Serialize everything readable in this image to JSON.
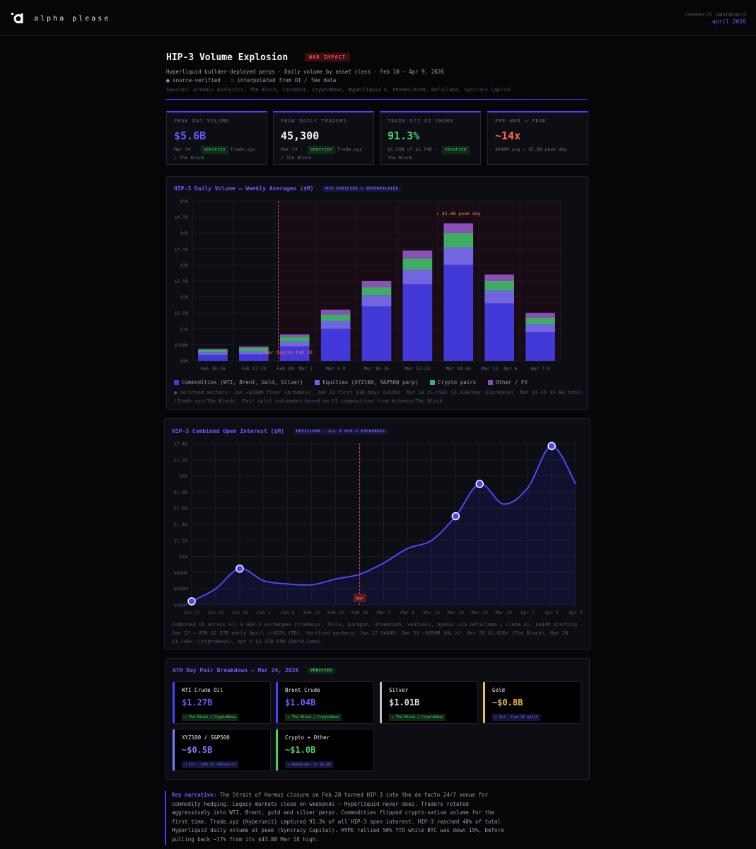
{
  "brand": {
    "name": "alpha please"
  },
  "top_right": {
    "line1": "research dashboard",
    "line2": "april 2026"
  },
  "header": {
    "title": "HIP-3 Volume Explosion",
    "badge": "WAR IMPACT",
    "subtitle": "Hyperliquid builder-deployed perps · Daily volume by asset class · Feb 10 – Apr 9, 2026",
    "legend_verified": "source-verified",
    "legend_interp": "interpolated from OI / fee data",
    "sources": "Sources: Artemis Analytics, The Block, CoinDesk, CryptoNews, Hyperliquid X, Phemex/ASXN, DefiLlama, Syncracy Capital"
  },
  "stats": [
    {
      "label": "PEAK DAY VOLUME",
      "value": "$5.6B",
      "color": "#6a5cff",
      "note_pre": "Mar 24 · ",
      "pill": "VERIFIED",
      "note_post": "Trade.xyz / The Block"
    },
    {
      "label": "PEAK DAILY TRADERS",
      "value": "45,300",
      "color": "#f0f0f5",
      "note_pre": "Mar 24 · ",
      "pill": "VERIFIED",
      "note_post": "Trade.xyz / The Block"
    },
    {
      "label": "TRADE.XYZ OI SHARE",
      "value": "91.3%",
      "color": "#4ad06a",
      "note_pre": "$1.58B of $1.74B · ",
      "pill": "VERIFIED",
      "note_post": "The Block"
    },
    {
      "label": "PRE-WAR → PEAK",
      "value": "~14x",
      "color": "#ff6a4a",
      "note_pre": "$400M avg → $5.6B peak day",
      "pill": "",
      "note_post": ""
    }
  ],
  "bar_panel": {
    "title": "HIP-3 Daily Volume — Weekly Averages ($M)",
    "tag": "MIX VERIFIED + INTERPOLATED",
    "legend": [
      "Commodities (WTI, Brent, Gold, Silver)",
      "Equities (XYZ100, S&P500 perp)",
      "Crypto pairs",
      "Other / FX"
    ],
    "note": "● Verified anchors: Jan ~$200M floor (Artemis), Jan 22 first $1B days (ASXN). Mar 10 CL-USDC $1.62B/day (CoinDesk), Mar 24-25 $5.6B total (Trade.xyz/The Block). Pair split estimates based on OI composition from Artemis/The Block."
  },
  "oi_panel": {
    "title": "HIP-3 Combined Open Interest ($M)",
    "tag": "DEFILLAMA · ALL 6 HIP-3 EXCHANGES",
    "note": "Combined OI across all 6 HIP-3 exchanges (tradexyz, felix, paragon, dreamcash, ventuals, hyena) via DefiLlama / Llama AI. $444M starting Jan 17 → ATH $2.37B early April (+433% YTD). Verified anchors: Jan 17 $444M, Jan 26 ~$850M (HL X), Mar 20 $1.43B+ (The Block), Mar 24 $1.74B+ (CryptoNews), Apr 5 $2.37B ATH (DefiLlama)."
  },
  "ath_panel": {
    "title": "ATH Day Pair Breakdown — Mar 24, 2026",
    "tag": "VERIFIED",
    "tiles": [
      {
        "name": "WTI Crude Oil",
        "value": "$1.27B",
        "color": "#6a5cff",
        "border": "#4a40ff",
        "src": "✓ The Block / CryptoNews",
        "kind": "v"
      },
      {
        "name": "Brent Crude",
        "value": "$1.04B",
        "color": "#6a5cff",
        "border": "#4a40ff",
        "src": "✓ The Block / CryptoNews",
        "kind": "v"
      },
      {
        "name": "Silver",
        "value": "$1.01B",
        "color": "#d8d8e0",
        "border": "#bfbfcf",
        "src": "✓ The Block / CryptoNews",
        "kind": "v"
      },
      {
        "name": "Gold",
        "value": "~$0.8B",
        "color": "#f0c030",
        "border": "#f0c030",
        "src": "○ Est. from OI split",
        "kind": "e"
      },
      {
        "name": "XYZ100 / S&P500",
        "value": "~$0.5B",
        "color": "#7a7aff",
        "border": "#7a7aff",
        "src": "○ Est. ~20% OI (AInvest)",
        "kind": "e"
      },
      {
        "name": "Crypto + Other",
        "value": "~$1.0B",
        "color": "#4ad06a",
        "border": "#4ad06a",
        "src": "○ Remainder to $5.6B",
        "kind": "e"
      }
    ]
  },
  "narrative": {
    "lead": "Key narrative:",
    "body": " The Strait of Hormuz closure on Feb 28 turned HIP-3 into the de facto 24/7 venue for commodity hedging. Legacy markets close on weekends — Hyperliquid never does. Traders rotated aggressively into WTI, Brent, gold and silver perps. Commodities flipped crypto-native volume for the first time. Trade.xyz (Hyperunit) captured 91.3% of all HIP-3 open interest. HIP-3 reached 40% of total Hyperliquid daily volume at peak (Syncracy Capital). HYPE rallied 50% YTD while BTC was down 15%, before pulling back ~17% from its $43.88 Mar 18 high."
  },
  "chart_data": [
    {
      "type": "bar",
      "stacked": true,
      "categories": [
        "Feb 10-16",
        "Feb 17-23",
        "Feb 24- Mar 2",
        "Mar 3-9",
        "Mar 10-16",
        "Mar 17-23",
        "Mar 24-30",
        "Mar 31- Apr 6",
        "Apr 7-9"
      ],
      "series": [
        {
          "name": "Commodities (WTI, Brent, Gold, Silver)",
          "color": "#4338d8",
          "values": [
            180,
            200,
            450,
            1000,
            1700,
            2400,
            3000,
            1800,
            900
          ]
        },
        {
          "name": "Equities (XYZ100, S&P500 perp)",
          "color": "#7166e0",
          "values": [
            80,
            100,
            150,
            250,
            350,
            450,
            550,
            400,
            250
          ]
        },
        {
          "name": "Crypto pairs",
          "color": "#3fae62",
          "values": [
            80,
            100,
            150,
            200,
            250,
            350,
            450,
            300,
            200
          ]
        },
        {
          "name": "Other / FX",
          "color": "#8a4fb8",
          "values": [
            40,
            50,
            80,
            150,
            200,
            250,
            300,
            200,
            150
          ]
        }
      ],
      "ylim": [
        0,
        5000
      ],
      "yticks": [
        "$0M",
        "$500M",
        "$1B",
        "$1.5B",
        "$2B",
        "$2.5B",
        "$3B",
        "$3.5B",
        "$4B",
        "$4.5B",
        "$5B"
      ],
      "annotations": [
        {
          "text": "War begins Feb 28",
          "at_category": "Feb 24- Mar 2"
        },
        {
          "text": "↑ $5.6B peak day",
          "at_category": "Mar 24-30"
        }
      ]
    },
    {
      "type": "line",
      "series": [
        {
          "values": [
            444,
            600,
            850,
            700,
            660,
            650,
            720,
            780,
            920,
            1100,
            1200,
            1500,
            1900,
            1650,
            1850,
            2370,
            1900
          ]
        }
      ],
      "xticks": [
        "Jan 17",
        "Jan 22",
        "Jan 26",
        "Feb 1",
        "Feb 8",
        "Feb 15",
        "Feb 22",
        "Feb 28",
        "Mar 3",
        "Mar 8",
        "Mar 15",
        "Mar 20",
        "Mar 24",
        "Mar 29",
        "Apr 1",
        "Apr 5",
        "Apr 9"
      ],
      "yticks": [
        "$400M",
        "$600M",
        "$800M",
        "$1B",
        "$1.2B",
        "$1.4B",
        "$1.6B",
        "$1.8B",
        "$2B",
        "$2.2B",
        "$2.4B"
      ],
      "ylim": [
        400,
        2400
      ],
      "highlight_points": [
        0,
        2,
        11,
        12,
        15
      ],
      "annotations": [
        {
          "text": "War",
          "at_x": "Feb 28"
        }
      ]
    }
  ]
}
